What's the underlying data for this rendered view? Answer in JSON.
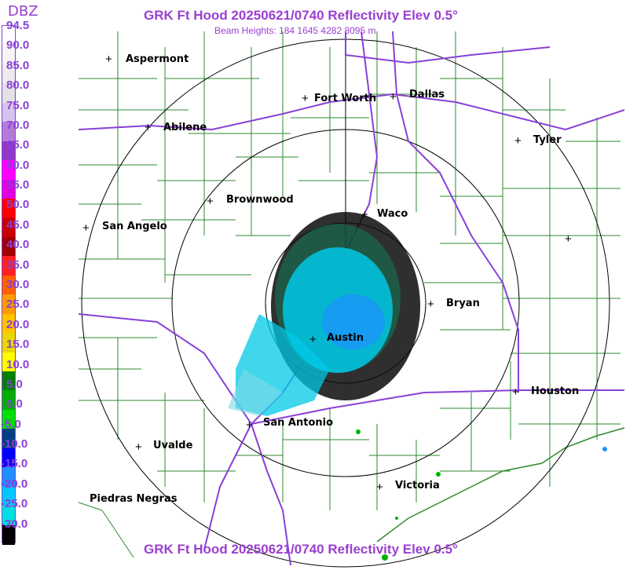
{
  "header": {
    "title": "GRK Ft Hood 20250621/0740 Reflectivity Elev 0.5°",
    "beam_heights": "Beam Heights: 184 1645 4282 8095 m",
    "bottom_title": "GRK Ft Hood 20250621/0740 Reflectivity Elev 0.5°"
  },
  "legend": {
    "unit": "DBZ",
    "ticks": [
      "94.5",
      "90.0",
      "85.0",
      "80.0",
      "75.0",
      "70.0",
      "65.0",
      "60.0",
      "55.0",
      "50.0",
      "45.0",
      "40.0",
      "35.0",
      "30.0",
      "25.0",
      "20.0",
      "15.0",
      "10.0",
      "5.0",
      "0.0",
      "-5.0",
      "-10.0",
      "-15.0",
      "-20.0",
      "-25.0",
      "-30.0"
    ],
    "colors": [
      "#ffffff",
      "#f6f6f6",
      "#ececec",
      "#e2e2e2",
      "#d7c4ee",
      "#b57ad8",
      "#9238c9",
      "#ff00ff",
      "#e000e0",
      "#ff0000",
      "#c80000",
      "#a00000",
      "#ff2020",
      "#ff6000",
      "#ff9c00",
      "#ffc400",
      "#e8d800",
      "#ffff00",
      "#008000",
      "#00b000",
      "#00e000",
      "#004080",
      "#0000ff",
      "#1e90ff",
      "#00c8ff",
      "#00e0e0",
      "#000000"
    ]
  },
  "cities": [
    {
      "name": "Aspermont"
    },
    {
      "name": "Fort Worth"
    },
    {
      "name": "Dallas"
    },
    {
      "name": "Abilene"
    },
    {
      "name": "Tyler"
    },
    {
      "name": "Brownwood"
    },
    {
      "name": "Waco"
    },
    {
      "name": "San Angelo"
    },
    {
      "name": "Bryan"
    },
    {
      "name": "Austin"
    },
    {
      "name": "Houston"
    },
    {
      "name": "San Antonio"
    },
    {
      "name": "Uvalde"
    },
    {
      "name": "Victoria"
    },
    {
      "name": "Piedras Negras"
    }
  ],
  "colors": {
    "title": "#9a3fd0",
    "county_lines": "#2d8a2d",
    "highways": "#8a40d8",
    "range_rings": "#000000"
  }
}
